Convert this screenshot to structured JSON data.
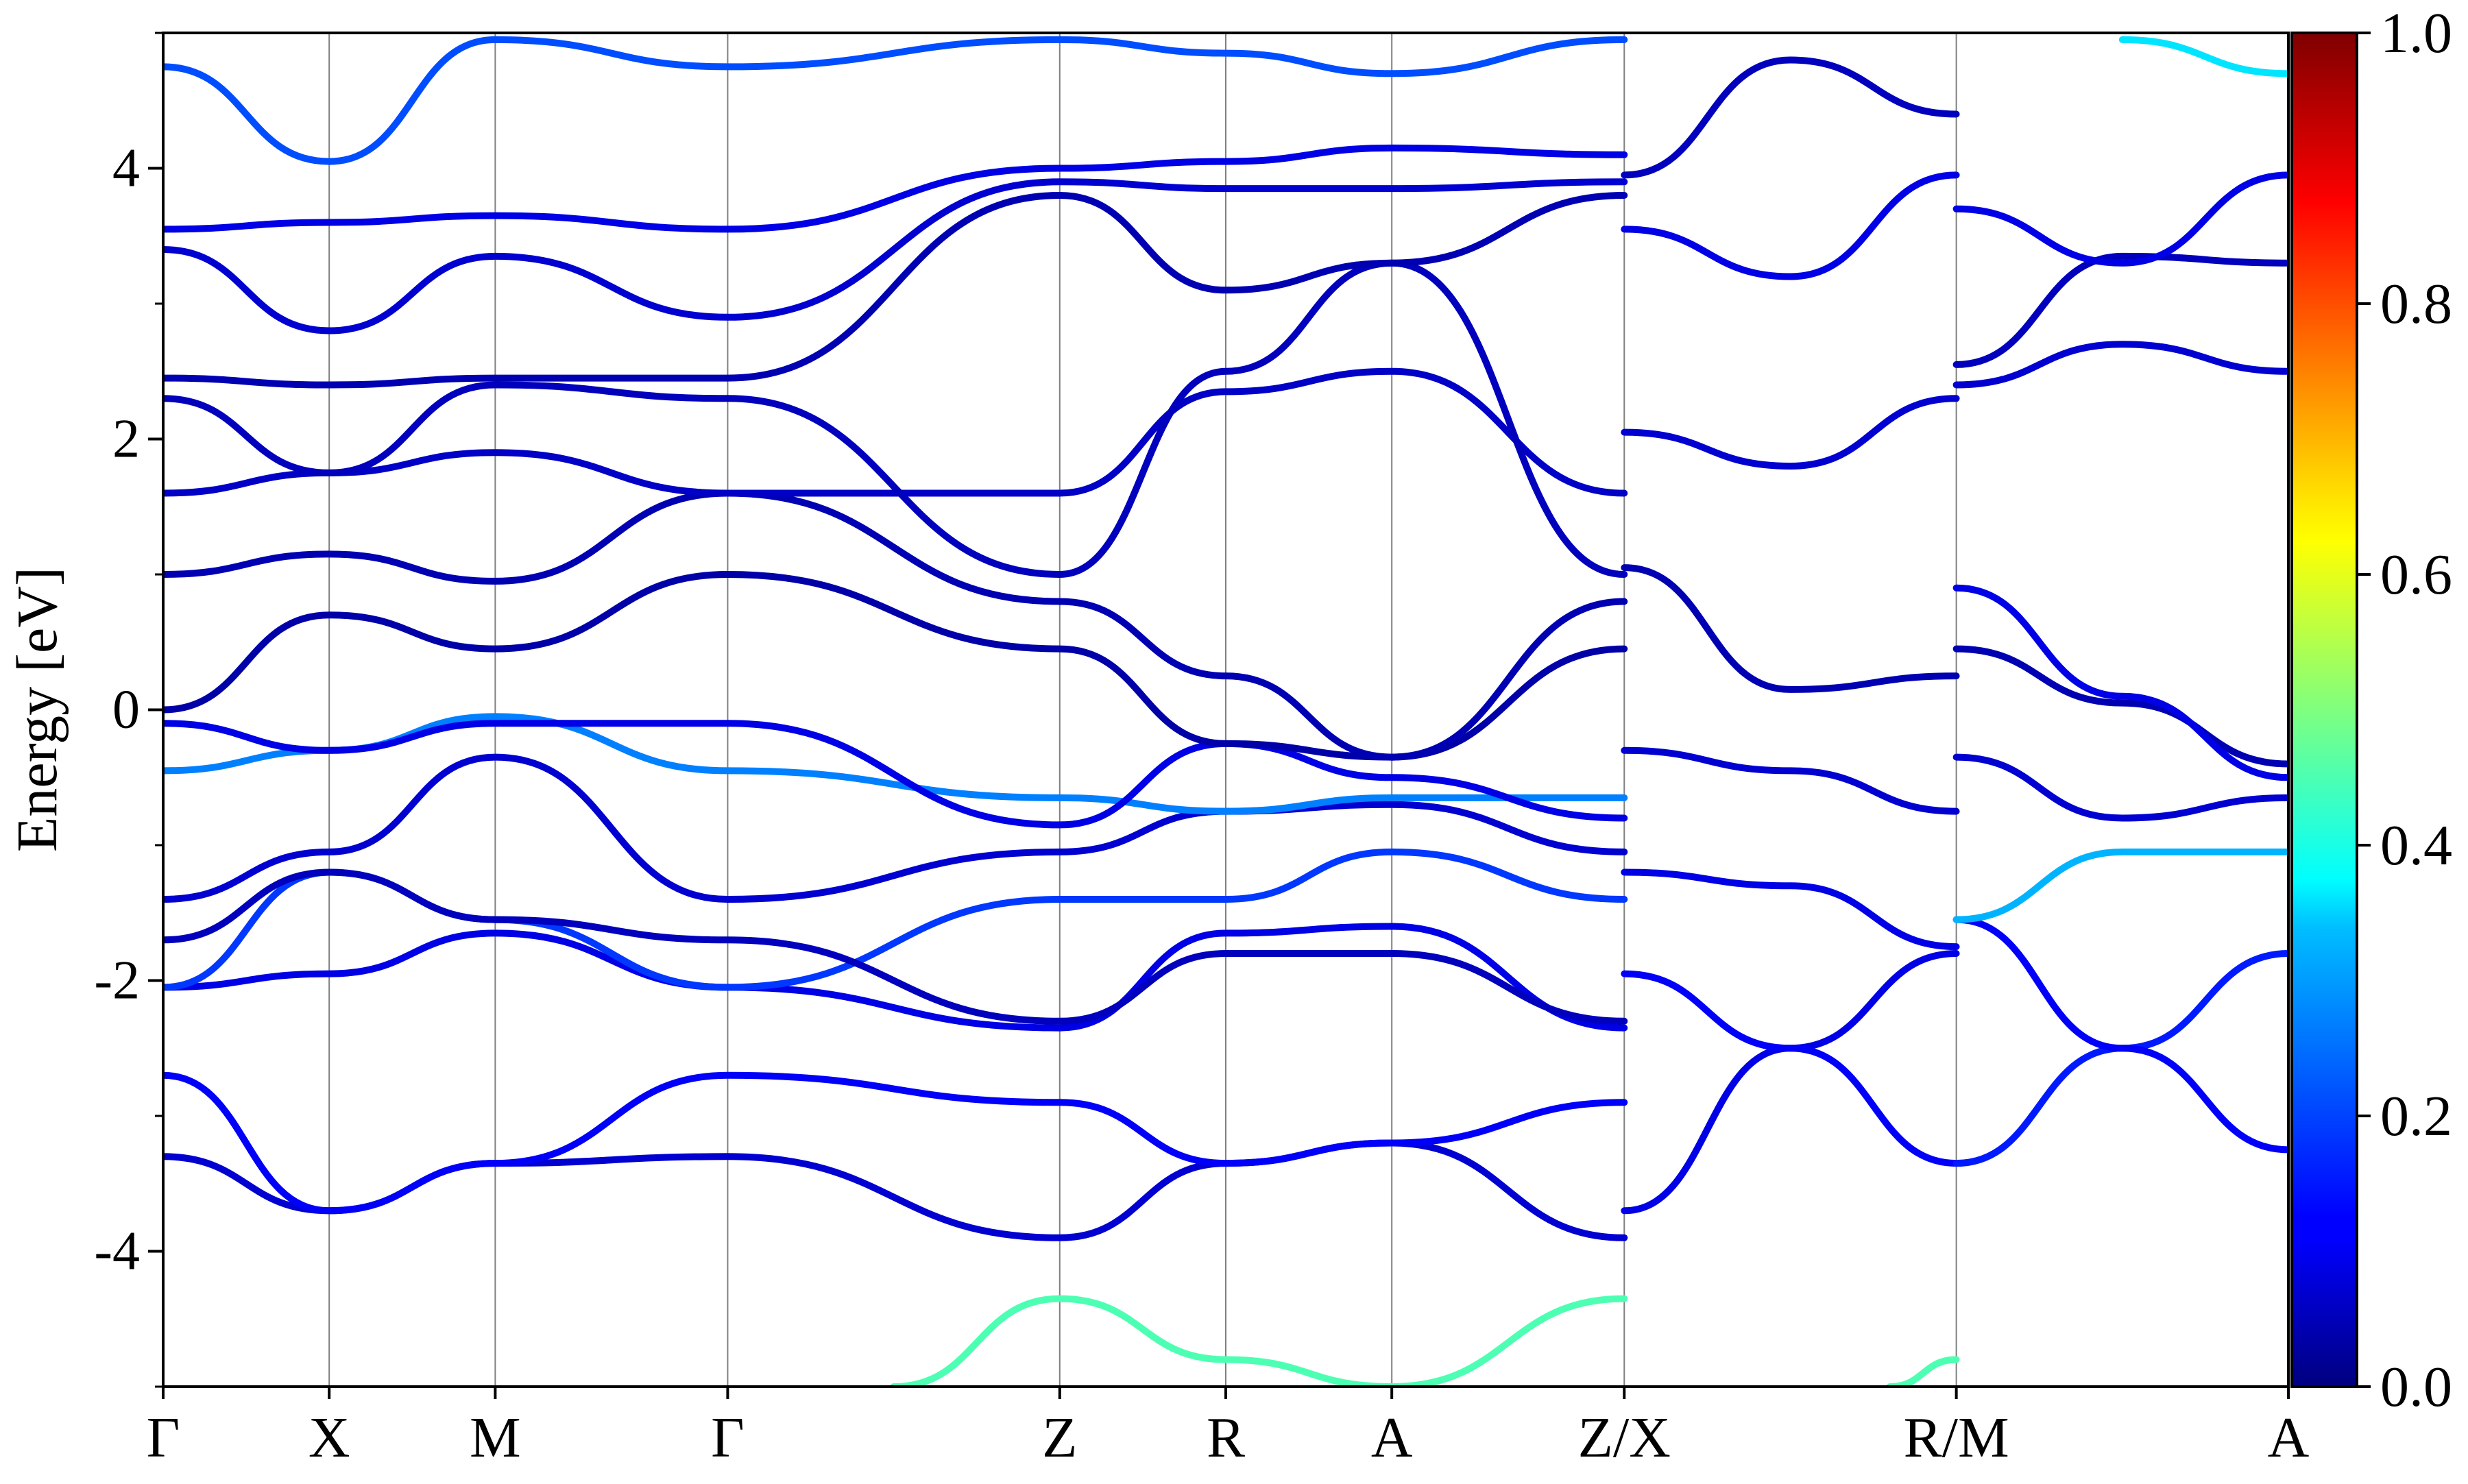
{
  "chart_data": {
    "type": "line",
    "title": "",
    "ylabel": "Energy [eV]",
    "xlabel": "",
    "ylim": [
      -5,
      5
    ],
    "yticks": [
      -4,
      -2,
      0,
      2,
      4
    ],
    "ytick_labels": [
      "-4",
      "-2",
      "0",
      "2",
      "4"
    ],
    "k_path": [
      {
        "label": "Γ",
        "x": 0.0
      },
      {
        "label": "X",
        "x": 0.5
      },
      {
        "label": "M",
        "x": 1.0
      },
      {
        "label": "Γ",
        "x": 1.7
      },
      {
        "label": "Z",
        "x": 2.7
      },
      {
        "label": "R",
        "x": 3.2
      },
      {
        "label": "A",
        "x": 3.7
      },
      {
        "label": "Z/X",
        "x": 4.4
      },
      {
        "label": "R/M",
        "x": 5.4
      },
      {
        "label": "A",
        "x": 6.4
      }
    ],
    "xlim": [
      0,
      6.4
    ],
    "grid": "vertical lines at high-symmetry points",
    "colorbar": {
      "colormap": "jet",
      "range": [
        0.0,
        1.0
      ],
      "tick_labels": [
        "0.0",
        "0.2",
        "0.4",
        "0.6",
        "0.8",
        "1.0"
      ],
      "ticks": [
        0.0,
        0.2,
        0.4,
        0.6,
        0.8,
        1.0
      ]
    },
    "series": [
      {
        "color_value": 0.08,
        "x": [
          0,
          0.5,
          1.0,
          1.7,
          2.7,
          3.2,
          3.7,
          4.4
        ],
        "y": [
          -3.3,
          -3.7,
          -3.35,
          -3.3,
          -3.9,
          -3.35,
          -3.2,
          -3.9
        ]
      },
      {
        "color_value": 0.12,
        "x": [
          0,
          0.5,
          1.0,
          1.7,
          2.7,
          3.2,
          3.7,
          4.4
        ],
        "y": [
          -2.7,
          -3.7,
          -3.35,
          -2.7,
          -2.9,
          -3.35,
          -3.2,
          -2.9
        ]
      },
      {
        "color_value": 0.1,
        "x": [
          0,
          0.5,
          1.0,
          1.7,
          2.7,
          3.2,
          3.7,
          4.4
        ],
        "y": [
          -2.05,
          -1.95,
          -1.65,
          -2.05,
          -2.35,
          -1.65,
          -1.6,
          -2.35
        ]
      },
      {
        "color_value": 0.18,
        "x": [
          0,
          0.5,
          1.0,
          1.7,
          2.7,
          3.2,
          3.7,
          4.4
        ],
        "y": [
          -2.05,
          -1.2,
          -1.55,
          -2.05,
          -1.4,
          -1.4,
          -1.05,
          -1.4
        ]
      },
      {
        "color_value": 0.06,
        "x": [
          0,
          0.5,
          1.0,
          1.7,
          2.7,
          3.2,
          3.7,
          4.4
        ],
        "y": [
          -1.7,
          -1.2,
          -1.55,
          -1.7,
          -2.3,
          -1.8,
          -1.8,
          -2.3
        ]
      },
      {
        "color_value": 0.08,
        "x": [
          0,
          0.5,
          1.0,
          1.7,
          2.7,
          3.2,
          3.7,
          4.4
        ],
        "y": [
          -1.4,
          -1.05,
          -0.35,
          -1.4,
          -1.05,
          -0.75,
          -0.7,
          -1.05
        ]
      },
      {
        "color_value": 0.25,
        "x": [
          0,
          0.5,
          1.0,
          1.7,
          2.7,
          3.2,
          3.7,
          4.4
        ],
        "y": [
          -0.45,
          -0.3,
          -0.05,
          -0.45,
          -0.65,
          -0.75,
          -0.65,
          -0.65
        ]
      },
      {
        "color_value": 0.1,
        "x": [
          0,
          0.5,
          1.0,
          1.7,
          2.7,
          3.2,
          3.7,
          4.4
        ],
        "y": [
          -0.1,
          -0.3,
          -0.1,
          -0.1,
          -0.85,
          -0.25,
          -0.5,
          -0.8
        ]
      },
      {
        "color_value": 0.04,
        "x": [
          0,
          0.5,
          1.0,
          1.7,
          2.7,
          3.2,
          3.7,
          4.4
        ],
        "y": [
          0.0,
          0.7,
          0.45,
          1.0,
          0.45,
          -0.25,
          -0.35,
          0.45
        ]
      },
      {
        "color_value": 0.05,
        "x": [
          0,
          0.5,
          1.0,
          1.7,
          2.7,
          3.2,
          3.7,
          4.4
        ],
        "y": [
          1.0,
          1.15,
          0.95,
          1.6,
          0.8,
          0.25,
          -0.35,
          0.8
        ]
      },
      {
        "color_value": 0.07,
        "x": [
          0,
          0.5,
          1.0,
          1.7,
          2.7,
          3.2,
          3.7,
          4.4
        ],
        "y": [
          1.6,
          1.75,
          1.9,
          1.6,
          1.6,
          2.35,
          2.5,
          1.6
        ]
      },
      {
        "color_value": 0.06,
        "x": [
          0,
          0.5,
          1.0,
          1.7,
          2.7,
          3.2,
          3.7,
          4.4
        ],
        "y": [
          2.3,
          1.75,
          2.4,
          2.3,
          1.0,
          2.5,
          3.3,
          1.0
        ]
      },
      {
        "color_value": 0.05,
        "x": [
          0,
          0.5,
          1.0,
          1.7,
          2.7,
          3.2,
          3.7,
          4.4
        ],
        "y": [
          2.45,
          2.4,
          2.45,
          2.45,
          3.8,
          3.1,
          3.3,
          3.8
        ]
      },
      {
        "color_value": 0.08,
        "x": [
          0,
          0.5,
          1.0,
          1.7,
          2.7,
          3.2,
          3.7,
          4.4
        ],
        "y": [
          3.4,
          2.8,
          3.35,
          2.9,
          3.9,
          3.85,
          3.85,
          3.9
        ]
      },
      {
        "color_value": 0.1,
        "x": [
          0,
          0.5,
          1.0,
          1.7,
          2.7,
          3.2,
          3.7,
          4.4
        ],
        "y": [
          3.55,
          3.6,
          3.65,
          3.55,
          4.0,
          4.05,
          4.15,
          4.1
        ]
      },
      {
        "color_value": 0.2,
        "x": [
          0,
          0.5,
          1.0,
          1.7,
          2.7,
          3.2,
          3.7,
          4.4
        ],
        "y": [
          4.75,
          4.05,
          4.95,
          4.75,
          4.95,
          4.85,
          4.7,
          4.95
        ]
      },
      {
        "color_value": 0.45,
        "x": [
          2.2,
          2.7,
          3.2,
          3.7,
          4.4
        ],
        "y": [
          -5.0,
          -4.35,
          -4.8,
          -5.0,
          -4.35
        ]
      },
      {
        "color_value": 0.1,
        "x": [
          4.4,
          4.9,
          5.4
        ],
        "y": [
          -3.7,
          -2.5,
          -1.8
        ]
      },
      {
        "color_value": 0.12,
        "x": [
          4.4,
          4.9,
          5.4
        ],
        "y": [
          -1.95,
          -2.5,
          -3.35
        ]
      },
      {
        "color_value": 0.1,
        "x": [
          4.4,
          4.9,
          5.4
        ],
        "y": [
          -1.2,
          -1.3,
          -1.75
        ]
      },
      {
        "color_value": 0.08,
        "x": [
          4.4,
          4.9,
          5.4
        ],
        "y": [
          -0.3,
          -0.45,
          -0.75
        ]
      },
      {
        "color_value": 0.05,
        "x": [
          4.4,
          4.9,
          5.4
        ],
        "y": [
          1.05,
          0.15,
          0.25
        ]
      },
      {
        "color_value": 0.08,
        "x": [
          4.4,
          4.9,
          5.4
        ],
        "y": [
          2.05,
          1.8,
          2.3
        ]
      },
      {
        "color_value": 0.1,
        "x": [
          4.4,
          4.9,
          5.4
        ],
        "y": [
          3.55,
          3.2,
          3.95
        ]
      },
      {
        "color_value": 0.06,
        "x": [
          4.4,
          4.9,
          5.4
        ],
        "y": [
          3.95,
          4.8,
          4.4
        ]
      },
      {
        "color_value": 0.15,
        "x": [
          5.4,
          5.9,
          6.4
        ],
        "y": [
          -3.35,
          -2.5,
          -1.8
        ]
      },
      {
        "color_value": 0.12,
        "x": [
          5.4,
          5.9,
          6.4
        ],
        "y": [
          -1.55,
          -2.5,
          -3.25
        ]
      },
      {
        "color_value": 0.3,
        "x": [
          5.4,
          5.9,
          6.4
        ],
        "y": [
          -1.55,
          -1.05,
          -1.05
        ]
      },
      {
        "color_value": 0.08,
        "x": [
          5.4,
          5.9,
          6.4
        ],
        "y": [
          -0.35,
          -0.8,
          -0.65
        ]
      },
      {
        "color_value": 0.05,
        "x": [
          5.4,
          5.9,
          6.4
        ],
        "y": [
          0.45,
          0.05,
          -0.4
        ]
      },
      {
        "color_value": 0.1,
        "x": [
          5.4,
          5.9,
          6.4
        ],
        "y": [
          0.9,
          0.1,
          -0.5
        ]
      },
      {
        "color_value": 0.08,
        "x": [
          5.4,
          5.9,
          6.4
        ],
        "y": [
          2.4,
          2.7,
          2.5
        ]
      },
      {
        "color_value": 0.06,
        "x": [
          5.4,
          5.9,
          6.4
        ],
        "y": [
          2.55,
          3.35,
          3.3
        ]
      },
      {
        "color_value": 0.1,
        "x": [
          5.4,
          5.9,
          6.4
        ],
        "y": [
          3.7,
          3.3,
          3.95
        ]
      },
      {
        "color_value": 0.35,
        "x": [
          5.9,
          6.4
        ],
        "y": [
          4.95,
          4.7
        ]
      },
      {
        "color_value": 0.45,
        "x": [
          5.2,
          5.4
        ],
        "y": [
          -5.0,
          -4.8
        ]
      }
    ]
  }
}
